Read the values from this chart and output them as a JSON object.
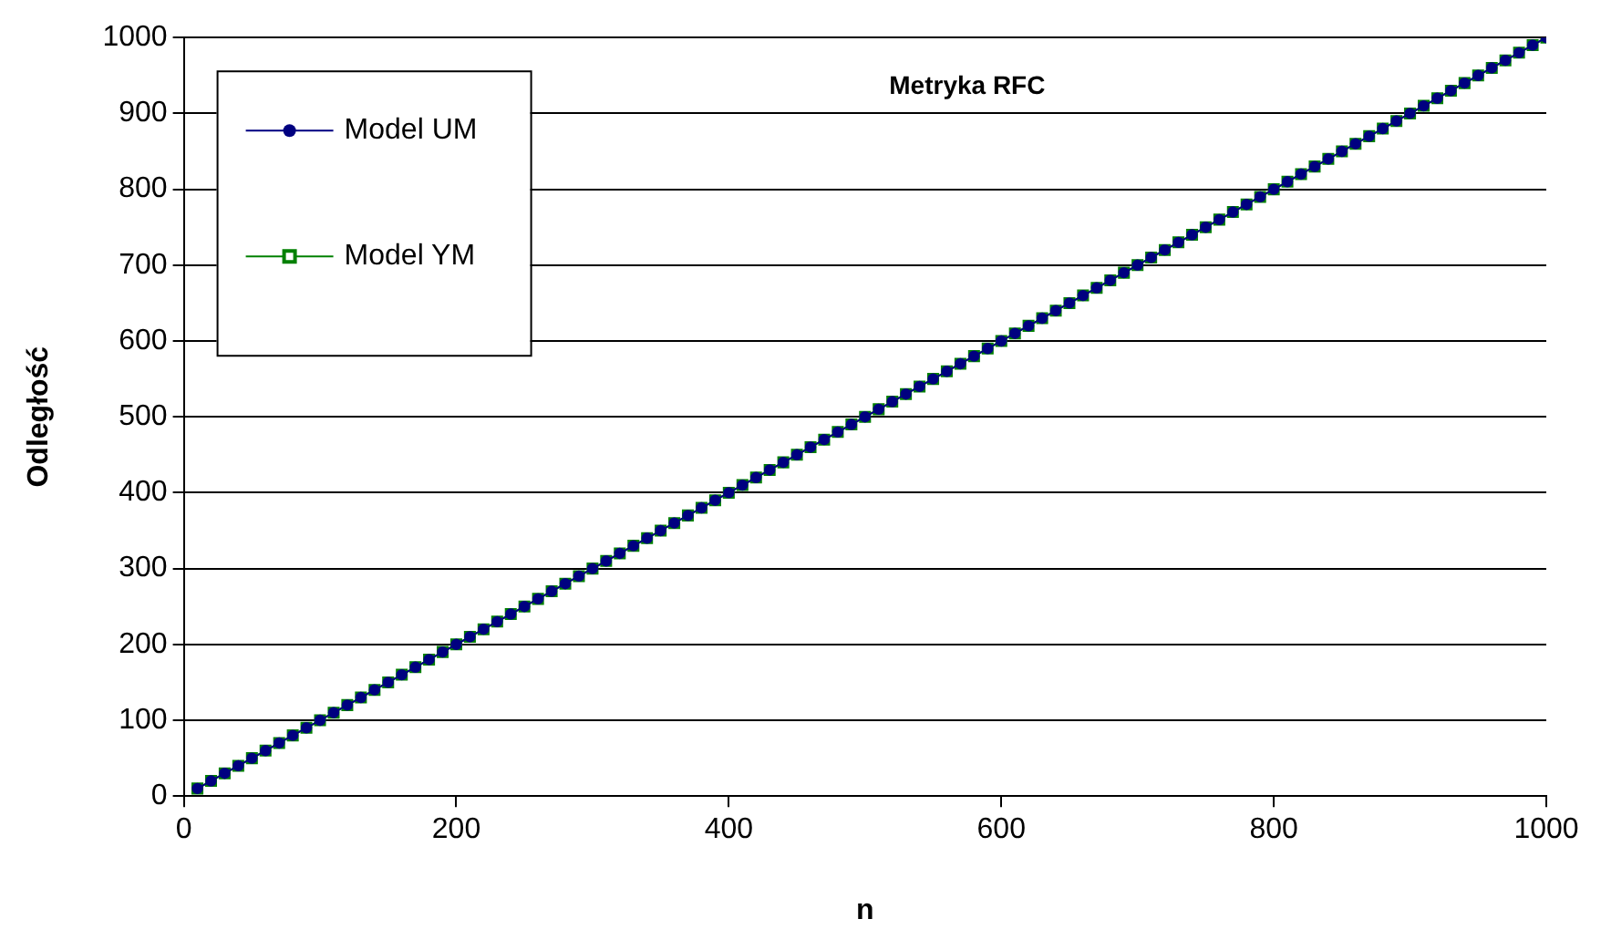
{
  "chart_data": {
    "type": "line",
    "title": "Metryka RFC",
    "xlabel": "n",
    "ylabel": "Odległość",
    "x": [
      10,
      20,
      30,
      40,
      50,
      60,
      70,
      80,
      90,
      100,
      110,
      120,
      130,
      140,
      150,
      160,
      170,
      180,
      190,
      200,
      210,
      220,
      230,
      240,
      250,
      260,
      270,
      280,
      290,
      300,
      310,
      320,
      330,
      340,
      350,
      360,
      370,
      380,
      390,
      400,
      410,
      420,
      430,
      440,
      450,
      460,
      470,
      480,
      490,
      500,
      510,
      520,
      530,
      540,
      550,
      560,
      570,
      580,
      590,
      600,
      610,
      620,
      630,
      640,
      650,
      660,
      670,
      680,
      690,
      700,
      710,
      720,
      730,
      740,
      750,
      760,
      770,
      780,
      790,
      800,
      810,
      820,
      830,
      840,
      850,
      860,
      870,
      880,
      890,
      900,
      910,
      920,
      930,
      940,
      950,
      960,
      970,
      980,
      990,
      1000
    ],
    "series": [
      {
        "name": "Model UM",
        "color": "#000080",
        "marker": "circle",
        "values": [
          10,
          20,
          30,
          40,
          50,
          60,
          70,
          80,
          90,
          100,
          110,
          120,
          130,
          140,
          150,
          160,
          170,
          180,
          190,
          200,
          210,
          220,
          230,
          240,
          250,
          260,
          270,
          280,
          290,
          300,
          310,
          320,
          330,
          340,
          350,
          360,
          370,
          380,
          390,
          400,
          410,
          420,
          430,
          440,
          450,
          460,
          470,
          480,
          490,
          500,
          510,
          520,
          530,
          540,
          550,
          560,
          570,
          580,
          590,
          600,
          610,
          620,
          630,
          640,
          650,
          660,
          670,
          680,
          690,
          700,
          710,
          720,
          730,
          740,
          750,
          760,
          770,
          780,
          790,
          800,
          810,
          820,
          830,
          840,
          850,
          860,
          870,
          880,
          890,
          900,
          910,
          920,
          930,
          940,
          950,
          960,
          970,
          980,
          990,
          1000
        ]
      },
      {
        "name": "Model YM",
        "color": "#008000",
        "marker": "square",
        "values": [
          10,
          20,
          30,
          40,
          50,
          60,
          70,
          80,
          90,
          100,
          110,
          120,
          130,
          140,
          150,
          160,
          170,
          180,
          190,
          200,
          210,
          220,
          230,
          240,
          250,
          260,
          270,
          280,
          290,
          300,
          310,
          320,
          330,
          340,
          350,
          360,
          370,
          380,
          390,
          400,
          410,
          420,
          430,
          440,
          450,
          460,
          470,
          480,
          490,
          500,
          510,
          520,
          530,
          540,
          550,
          560,
          570,
          580,
          590,
          600,
          610,
          620,
          630,
          640,
          650,
          660,
          670,
          680,
          690,
          700,
          710,
          720,
          730,
          740,
          750,
          760,
          770,
          780,
          790,
          800,
          810,
          820,
          830,
          840,
          850,
          860,
          870,
          880,
          890,
          900,
          910,
          920,
          930,
          940,
          950,
          960,
          970,
          980,
          990,
          1000
        ]
      }
    ],
    "xlim": [
      0,
      1000
    ],
    "xticks": [
      0,
      200,
      400,
      600,
      800,
      1000
    ],
    "ylim": [
      0,
      1000
    ],
    "yticks": [
      0,
      100,
      200,
      300,
      400,
      500,
      600,
      700,
      800,
      900,
      1000
    ],
    "grid": "y",
    "legend": "top left",
    "line_style": "solid"
  }
}
